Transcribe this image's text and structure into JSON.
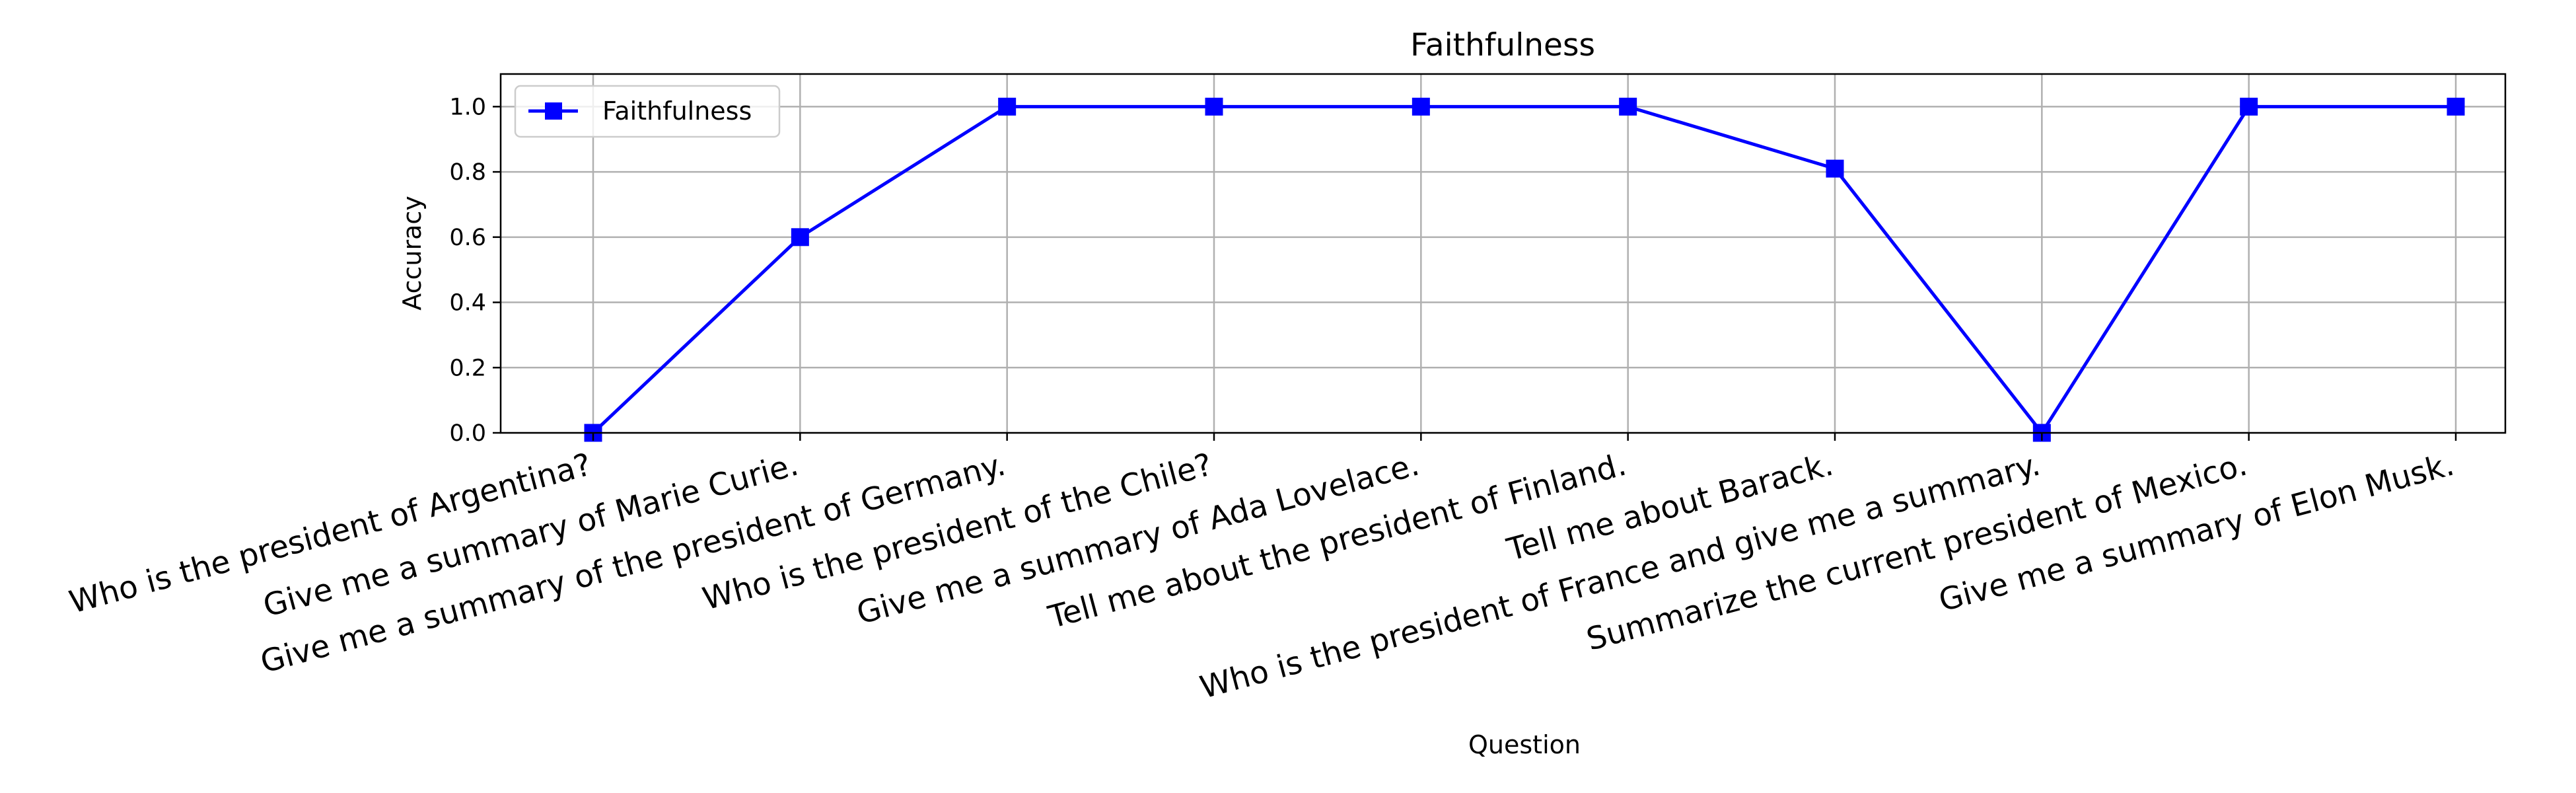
{
  "chart_data": {
    "type": "line",
    "title": "Faithfulness",
    "xlabel": "Question",
    "ylabel": "Accuracy",
    "ylim": [
      0,
      1.1
    ],
    "yticks": [
      "0.0",
      "0.2",
      "0.4",
      "0.6",
      "0.8",
      "1.0"
    ],
    "grid": true,
    "legend_position": "upper-left",
    "categories": [
      "Who is the president of Argentina?",
      "Give me a summary of Marie Curie.",
      "Give me a summary of the president of Germany.",
      "Who is the president of the Chile?",
      "Give me a summary of Ada Lovelace.",
      "Tell me about the president of Finland.",
      "Tell me about Barack.",
      "Who is the president of France and give me a summary.",
      "Summarize the current president of Mexico.",
      "Give me a summary of Elon Musk."
    ],
    "series": [
      {
        "name": "Faithfulness",
        "color": "#0000ff",
        "marker": "square",
        "values": [
          0.0,
          0.6,
          1.0,
          1.0,
          1.0,
          1.0,
          0.81,
          0.0,
          1.0,
          1.0
        ]
      }
    ]
  }
}
